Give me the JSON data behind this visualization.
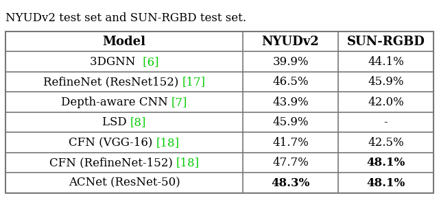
{
  "caption": "NYUDv2 test set and SUN-RGBD test set.",
  "headers": [
    "Model",
    "NYUDv2",
    "SUN-RGBD"
  ],
  "rows": [
    [
      [
        "3DGNN ",
        "black"
      ],
      [
        " [6]",
        "green"
      ]
    ],
    [
      [
        "RefineNet (ResNet152) ",
        "black"
      ],
      [
        "[17]",
        "green"
      ]
    ],
    [
      [
        "Depth-aware CNN ",
        "black"
      ],
      [
        "[7]",
        "green"
      ]
    ],
    [
      [
        "LSD ",
        "black"
      ],
      [
        "[8]",
        "green"
      ]
    ],
    [
      [
        "CFN (VGG-16) ",
        "black"
      ],
      [
        "[18]",
        "green"
      ]
    ],
    [
      [
        "CFN (RefineNet-152) ",
        "black"
      ],
      [
        "[18]",
        "green"
      ]
    ],
    [
      [
        "ACNet (ResNet-50)",
        "black"
      ],
      [
        "",
        ""
      ]
    ]
  ],
  "col2": [
    "39.9%",
    "46.5%",
    "43.9%",
    "45.9%",
    "41.7%",
    "47.7%",
    "48.3%"
  ],
  "col3": [
    "44.1%",
    "45.9%",
    "42.0%",
    "-",
    "42.5%",
    "48.1%",
    "48.1%"
  ],
  "bold_col2": [
    false,
    false,
    false,
    false,
    false,
    false,
    true
  ],
  "bold_col3": [
    false,
    false,
    false,
    false,
    false,
    true,
    true
  ],
  "green_color": "#00cc00",
  "edge_color": "#777777",
  "header_fontsize": 13,
  "cell_fontsize": 12,
  "caption_fontsize": 12,
  "fig_width": 6.4,
  "fig_height": 2.95
}
